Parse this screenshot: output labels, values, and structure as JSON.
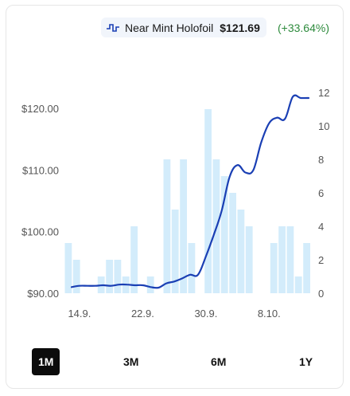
{
  "legend": {
    "icon": "step-line-icon",
    "name": "Near Mint Holofoil",
    "price": "$121.69",
    "change": "(+33.64%)",
    "change_color": "#2e8b3d",
    "line_color": "#1a3fb4",
    "bar_color": "#d3ecfb"
  },
  "ranges": [
    {
      "label": "1M",
      "active": true
    },
    {
      "label": "3M",
      "active": false
    },
    {
      "label": "6M",
      "active": false
    },
    {
      "label": "1Y",
      "active": false
    }
  ],
  "chart_data": {
    "type": "line+bar",
    "x_ticks": [
      "14.9.",
      "22.9.",
      "30.9.",
      "8.10."
    ],
    "y_left": {
      "ticks": [
        "$90.00",
        "$100.00",
        "$110.00",
        "$120.00"
      ],
      "range": [
        90,
        122.6
      ]
    },
    "y_right": {
      "ticks": [
        "0",
        "2",
        "4",
        "6",
        "8",
        "10",
        "12"
      ],
      "range": [
        0,
        12
      ]
    },
    "series": [
      {
        "name": "Near Mint Holofoil",
        "type": "line",
        "axis": "left",
        "x": [
          "13.9.",
          "14.9.",
          "15.9.",
          "16.9.",
          "17.9.",
          "18.9.",
          "19.9.",
          "20.9.",
          "21.9.",
          "22.9.",
          "23.9.",
          "24.9.",
          "25.9.",
          "26.9.",
          "27.9.",
          "28.9.",
          "29.9.",
          "30.9.",
          "1.10.",
          "2.10.",
          "3.10.",
          "4.10.",
          "5.10.",
          "6.10.",
          "7.10.",
          "8.10.",
          "9.10.",
          "10.10.",
          "11.10.",
          "12.10.",
          "13.10."
        ],
        "values": [
          91.0,
          91.2,
          91.2,
          91.2,
          91.3,
          91.2,
          91.4,
          91.4,
          91.3,
          91.3,
          91.0,
          90.9,
          91.6,
          91.9,
          92.4,
          93.0,
          93.0,
          96.0,
          99.5,
          103.4,
          108.9,
          110.8,
          109.6,
          110.0,
          114.5,
          117.6,
          118.5,
          118.3,
          121.9,
          121.7,
          121.7
        ]
      },
      {
        "name": "volume",
        "type": "bar",
        "axis": "right",
        "values": [
          3,
          2,
          0,
          0,
          1,
          2,
          2,
          1,
          4,
          0,
          1,
          0,
          8,
          5,
          8,
          3,
          0,
          11,
          8,
          7,
          6,
          5,
          4,
          0,
          0,
          3,
          4,
          4,
          1,
          3
        ]
      }
    ],
    "grid": false,
    "legend_position": "top-center"
  }
}
